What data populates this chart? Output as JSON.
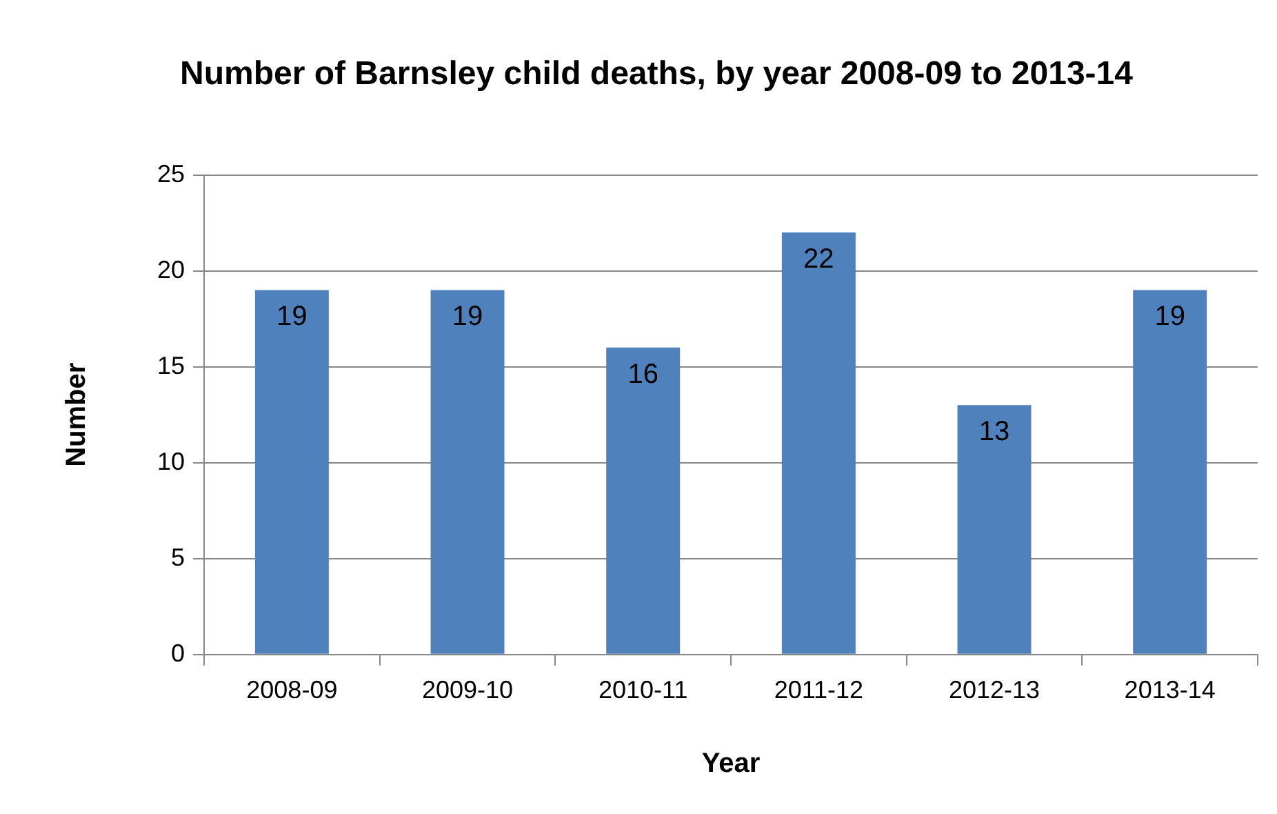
{
  "chart_data": {
    "type": "bar",
    "title": "Number of Barnsley child deaths, by year 2008-09 to 2013-14",
    "xlabel": "Year",
    "ylabel": "Number",
    "categories": [
      "2008-09",
      "2009-10",
      "2010-11",
      "2011-12",
      "2012-13",
      "2013-14"
    ],
    "values": [
      19,
      19,
      16,
      22,
      13,
      19
    ],
    "color": "#4f81bd",
    "ylim": [
      0,
      25
    ],
    "yticks": [
      0,
      5,
      10,
      15,
      20,
      25
    ],
    "grid": "y",
    "legend": false,
    "data_labels": true
  }
}
